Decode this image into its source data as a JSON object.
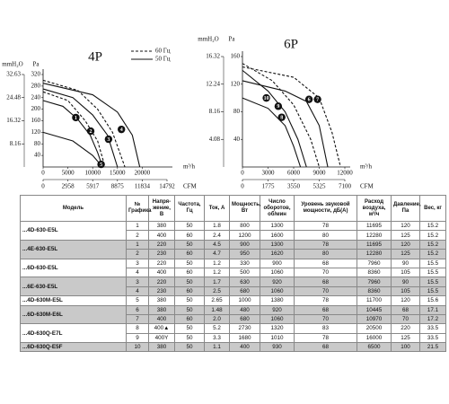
{
  "chart_data": [
    {
      "type": "line",
      "title": "4P",
      "ylabel": "Pa",
      "y2label": "mmH₂O",
      "xlabel": "m³/h",
      "x2label": "CFM",
      "xlim": [
        0,
        25000
      ],
      "xticks": [
        0,
        5000,
        10000,
        15000,
        20000
      ],
      "x2lim": [
        0,
        14792
      ],
      "x2ticks": [
        0,
        2958,
        5917,
        8875,
        11834,
        14792
      ],
      "ylim": [
        0,
        320
      ],
      "yticks": [
        40,
        80,
        120,
        160,
        200,
        240,
        280,
        320
      ],
      "y2lim": [
        0,
        32.63
      ],
      "y2ticks": [
        8.16,
        16.32,
        24.48,
        32.63
      ],
      "grid": false,
      "color": "#111111",
      "legend": [
        {
          "label": "60 Гц",
          "dash": true
        },
        {
          "label": "50 Гц",
          "dash": false
        }
      ],
      "series": [
        {
          "dash": false,
          "x": [
            0,
            4000,
            7000,
            9500,
            11000,
            12000
          ],
          "values": [
            230,
            210,
            165,
            110,
            50,
            0
          ]
        },
        {
          "dash": true,
          "x": [
            0,
            5000,
            8500,
            11000,
            12500
          ],
          "values": [
            260,
            230,
            160,
            90,
            0
          ]
        },
        {
          "dash": false,
          "x": [
            0,
            6000,
            10000,
            13000,
            15000
          ],
          "values": [
            270,
            240,
            180,
            110,
            0
          ]
        },
        {
          "dash": true,
          "x": [
            0,
            7000,
            11000,
            14000,
            16500
          ],
          "values": [
            300,
            265,
            200,
            120,
            0
          ]
        },
        {
          "dash": false,
          "x": [
            0,
            10000,
            15000,
            18000,
            19500
          ],
          "values": [
            290,
            250,
            190,
            110,
            0
          ]
        },
        {
          "dash": false,
          "x": [
            0,
            6000,
            10000,
            12000
          ],
          "values": [
            120,
            90,
            40,
            0
          ]
        }
      ],
      "markers": [
        {
          "label": "1",
          "x": 6600,
          "y": 171
        },
        {
          "label": "2",
          "x": 9600,
          "y": 124
        },
        {
          "label": "3",
          "x": 13200,
          "y": 96
        },
        {
          "label": "4",
          "x": 15800,
          "y": 130
        },
        {
          "label": "5",
          "x": 11700,
          "y": 9
        }
      ]
    },
    {
      "type": "line",
      "title": "6P",
      "ylabel": "Pa",
      "y2label": "mmH₂O",
      "xlabel": "m³/h",
      "x2label": "CFM",
      "xlim": [
        0,
        12000
      ],
      "xticks": [
        0,
        3000,
        6000,
        9000,
        12000
      ],
      "x2lim": [
        0,
        7100
      ],
      "x2ticks": [
        0,
        1775,
        3550,
        5325,
        7100
      ],
      "ylim": [
        0,
        160
      ],
      "yticks": [
        40,
        80,
        120,
        160
      ],
      "y2lim": [
        0,
        16.32
      ],
      "y2ticks": [
        4.08,
        8.16,
        12.24,
        16.32
      ],
      "grid": false,
      "color": "#111111",
      "series": [
        {
          "dash": false,
          "x": [
            0,
            3000,
            5000,
            6500,
            7500
          ],
          "values": [
            140,
            110,
            80,
            40,
            0
          ]
        },
        {
          "dash": true,
          "x": [
            0,
            3500,
            6000,
            8000,
            9000
          ],
          "values": [
            150,
            125,
            90,
            40,
            0
          ]
        },
        {
          "dash": false,
          "x": [
            0,
            5000,
            7500,
            9000,
            10000
          ],
          "values": [
            125,
            110,
            95,
            60,
            0
          ]
        },
        {
          "dash": true,
          "x": [
            0,
            6000,
            9000,
            10500,
            11500
          ],
          "values": [
            145,
            130,
            100,
            50,
            0
          ]
        },
        {
          "dash": false,
          "x": [
            0,
            3000,
            5000,
            6000,
            6800
          ],
          "values": [
            100,
            85,
            60,
            30,
            0
          ]
        }
      ],
      "markers": [
        {
          "label": "10",
          "x": 2800,
          "y": 100
        },
        {
          "label": "9",
          "x": 4200,
          "y": 88
        },
        {
          "label": "8",
          "x": 4600,
          "y": 72
        },
        {
          "label": "6",
          "x": 7800,
          "y": 98
        },
        {
          "label": "7",
          "x": 8800,
          "y": 98
        }
      ]
    }
  ],
  "table": {
    "headers": [
      "Модель",
      "№ Графика",
      "Напря-жение, В",
      "Частота, Гц",
      "Ток, А",
      "Мощность, Вт",
      "Число оборотов, об/мин",
      "Уровень звуковой мощности, дБ(A)",
      "Расход воздуха, м³/ч",
      "Давление, Па",
      "Вес, кг"
    ],
    "groups": [
      {
        "model": "...4D-630-E5L",
        "shade": false,
        "rows": [
          [
            "1",
            "380",
            "50",
            "1.8",
            "800",
            "1300",
            "78",
            "11695",
            "120",
            "15.2"
          ],
          [
            "2",
            "400",
            "60",
            "2.4",
            "1200",
            "1600",
            "80",
            "12280",
            "125",
            "15.2"
          ]
        ]
      },
      {
        "model": "...4E-630-E5L",
        "shade": true,
        "rows": [
          [
            "1",
            "220",
            "50",
            "4.5",
            "900",
            "1300",
            "78",
            "11695",
            "120",
            "15.2"
          ],
          [
            "2",
            "230",
            "60",
            "4.7",
            "950",
            "1620",
            "80",
            "12280",
            "125",
            "15.2"
          ]
        ]
      },
      {
        "model": "...6D-630-E5L",
        "shade": false,
        "rows": [
          [
            "3",
            "220",
            "50",
            "1.2",
            "330",
            "900",
            "68",
            "7960",
            "90",
            "15.5"
          ],
          [
            "4",
            "400",
            "60",
            "1.2",
            "500",
            "1060",
            "70",
            "8360",
            "105",
            "15.5"
          ]
        ]
      },
      {
        "model": "...6E-630-E5L",
        "shade": true,
        "rows": [
          [
            "3",
            "220",
            "50",
            "1.7",
            "630",
            "920",
            "68",
            "7960",
            "90",
            "15.5"
          ],
          [
            "4",
            "230",
            "60",
            "2.5",
            "680",
            "1060",
            "70",
            "8360",
            "105",
            "15.5"
          ]
        ]
      },
      {
        "model": "...4D-630M-E5L",
        "shade": false,
        "rows": [
          [
            "5",
            "380",
            "50",
            "2.65",
            "1000",
            "1380",
            "78",
            "11700",
            "120",
            "15.6"
          ]
        ]
      },
      {
        "model": "...6D-630M-E6L",
        "shade": true,
        "rows": [
          [
            "6",
            "380",
            "50",
            "1.48",
            "480",
            "920",
            "68",
            "10445",
            "68",
            "17.1"
          ],
          [
            "7",
            "400",
            "60",
            "2.0",
            "680",
            "1060",
            "70",
            "10970",
            "70",
            "17.2"
          ]
        ]
      },
      {
        "model": "...4D-630Q-E7L",
        "shade": false,
        "rows": [
          [
            "8",
            "400▲",
            "50",
            "5.2",
            "2730",
            "1320",
            "83",
            "20500",
            "220",
            "33.5"
          ],
          [
            "9",
            "400Y",
            "50",
            "3.3",
            "1680",
            "1010",
            "78",
            "16000",
            "125",
            "33.5"
          ]
        ]
      },
      {
        "model": "...6D-630Q-E5F",
        "shade": true,
        "rows": [
          [
            "10",
            "380",
            "50",
            "1.1",
            "400",
            "930",
            "68",
            "6500",
            "100",
            "21.5"
          ]
        ]
      }
    ]
  }
}
